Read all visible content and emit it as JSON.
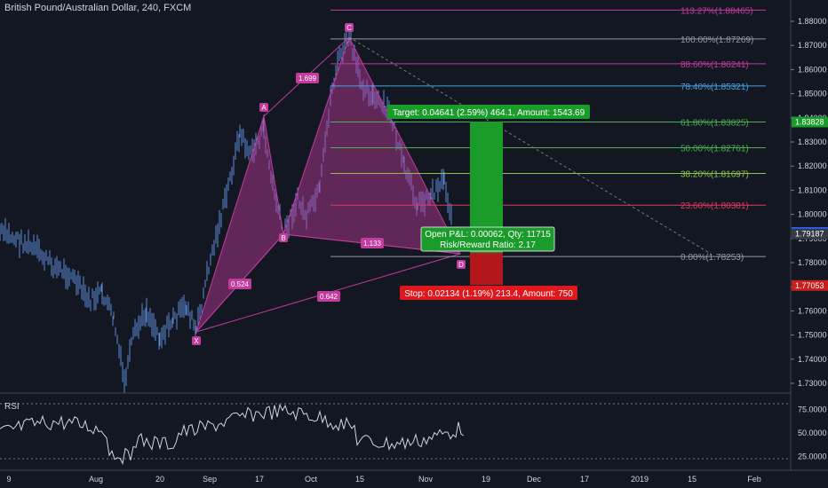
{
  "symbol_title": "British Pound/Australian Dollar, 240, FXCM",
  "rsi_label": "RSI",
  "colors": {
    "background": "#131722",
    "candle": "#5b8bd6",
    "harmonic": "#c23b9d",
    "green_zone": "#1a9c2a",
    "red_zone": "#c81e1e",
    "text": "#d1d4dc"
  },
  "price_axis": {
    "ticks": [
      "1.88000",
      "1.87000",
      "1.86000",
      "1.85000",
      "1.84000",
      "1.83000",
      "1.82000",
      "1.81000",
      "1.80000",
      "1.79000",
      "1.78000",
      "1.77000",
      "1.76000",
      "1.75000",
      "1.74000",
      "1.73000"
    ],
    "badges": [
      {
        "text": "1.83828",
        "color": "#1a9c2a"
      },
      {
        "text": "1.79249",
        "color": "#2962ff"
      },
      {
        "text": "1.79187",
        "color": "#363a45"
      },
      {
        "text": "1.77053",
        "color": "#c81e1e"
      }
    ]
  },
  "rsi_axis": {
    "ticks": [
      "75.0000",
      "50.0000",
      "25.0000"
    ]
  },
  "time_axis": {
    "ticks": [
      "9",
      "Aug",
      "20",
      "Sep",
      "17",
      "Oct",
      "15",
      "Nov",
      "19",
      "Dec",
      "17",
      "2019",
      "15",
      "Feb"
    ]
  },
  "fib_levels": [
    {
      "label": "113.27%(1.88465)",
      "price": 1.88465,
      "color": "#c23b9d"
    },
    {
      "label": "100.00%(1.87269)",
      "price": 1.87269,
      "color": "#9598a1"
    },
    {
      "label": "88.60%(1.86241)",
      "price": 1.86241,
      "color": "#c23b9d"
    },
    {
      "label": "78.40%(1.85321)",
      "price": 1.85321,
      "color": "#4a9fe0"
    },
    {
      "label": "61.80%(1.83825)",
      "price": 1.83825,
      "color": "#4caf50"
    },
    {
      "label": "50.00%(1.82761)",
      "price": 1.82761,
      "color": "#4caf50"
    },
    {
      "label": "38.20%(1.81697)",
      "price": 1.81697,
      "color": "#8bc34a"
    },
    {
      "label": "23.60%(1.80381)",
      "price": 1.80381,
      "color": "#e0385a"
    },
    {
      "label": "0.00%(1.78253)",
      "price": 1.78253,
      "color": "#9598a1"
    }
  ],
  "pattern": {
    "points": {
      "X": "X",
      "A": "A",
      "B": "B",
      "C": "C",
      "D": "D"
    },
    "ratios": {
      "XB": "0.524",
      "AC": "1.699",
      "BD": "1.133",
      "XD": "0.642"
    }
  },
  "position": {
    "target_label": "Target: 0.04641 (2.59%) 464.1, Amount: 1543.69",
    "open_pl_label": "Open P&L: 0.00062, Qty: 11715",
    "risk_reward_label": "Risk/Reward Ratio: 2.17",
    "stop_label": "Stop: 0.02134 (1.19%) 213.4, Amount: 750"
  }
}
